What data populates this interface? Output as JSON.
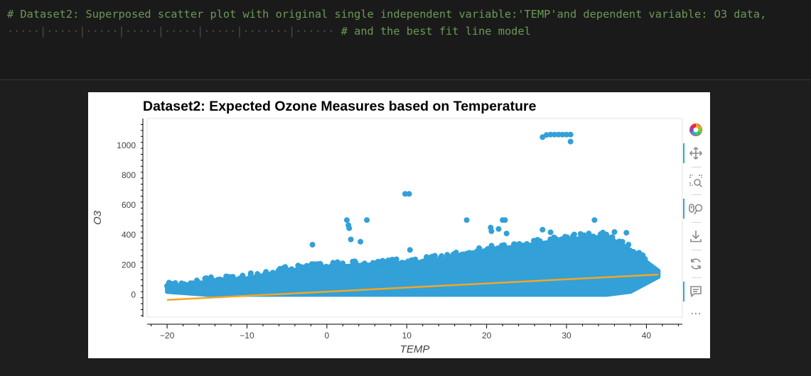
{
  "code_cell": {
    "line1": "# Dataset2: Superposed scatter plot with original single independent variable:'TEMP'and dependent variable: O3 data,",
    "line2": "# and the best fit line model"
  },
  "toolbar": {
    "items": [
      "bokeh-logo",
      "pan",
      "box-zoom",
      "wheel-zoom",
      "save",
      "reset",
      "hover",
      "more"
    ],
    "more_label": "⋯"
  },
  "colors": {
    "scatter": "#33a0d8",
    "fit_line": "#f5a623",
    "code_comment": "#6a9955"
  },
  "chart_data": {
    "type": "scatter",
    "title": "Dataset2: Expected Ozone Measures based on Temperature",
    "xlabel": "TEMP",
    "ylabel": "O3",
    "xlim": [
      -22.5,
      44.5
    ],
    "ylim": [
      -150,
      1180
    ],
    "x_ticks": [
      -20,
      -10,
      0,
      10,
      20,
      30,
      40
    ],
    "y_ticks": [
      0,
      200,
      400,
      600,
      800,
      1000
    ],
    "x_tick_labels": [
      "−20",
      "−10",
      "0",
      "10",
      "20",
      "30",
      "40"
    ],
    "y_tick_labels": [
      "0",
      "200",
      "400",
      "600",
      "800",
      "1000"
    ],
    "grid": false,
    "legend": "none",
    "series": [
      {
        "type": "scatter",
        "outliers": [
          [
            27.0,
            1055
          ],
          [
            27.5,
            1070
          ],
          [
            28.0,
            1072
          ],
          [
            28.5,
            1072
          ],
          [
            29.0,
            1072
          ],
          [
            29.5,
            1072
          ],
          [
            30.0,
            1072
          ],
          [
            30.5,
            1072
          ],
          [
            30.5,
            1025
          ],
          [
            9.8,
            675
          ],
          [
            10.3,
            675
          ],
          [
            2.5,
            500
          ],
          [
            5.0,
            500
          ],
          [
            17.5,
            500
          ],
          [
            22.0,
            500
          ],
          [
            22.3,
            500
          ],
          [
            33.5,
            500
          ],
          [
            2.7,
            465
          ],
          [
            2.8,
            445
          ],
          [
            20.5,
            450
          ],
          [
            20.6,
            425
          ],
          [
            22.5,
            410
          ],
          [
            27.0,
            435
          ],
          [
            28.0,
            418
          ],
          [
            3.0,
            370
          ],
          [
            4.2,
            355
          ],
          [
            -1.8,
            335
          ],
          [
            10.4,
            300
          ],
          [
            21.5,
            440
          ],
          [
            36.0,
            420
          ],
          [
            37.5,
            415
          ]
        ],
        "band": [
          {
            "x": -20.0,
            "min": 20,
            "max": 50
          },
          {
            "x": -15.0,
            "min": 0,
            "max": 85
          },
          {
            "x": -10.0,
            "min": 0,
            "max": 110
          },
          {
            "x": -5.0,
            "min": 0,
            "max": 160
          },
          {
            "x": 0.0,
            "min": 0,
            "max": 185
          },
          {
            "x": 5.0,
            "min": 0,
            "max": 200
          },
          {
            "x": 10.0,
            "min": 0,
            "max": 210
          },
          {
            "x": 15.0,
            "min": 0,
            "max": 240
          },
          {
            "x": 20.0,
            "min": 0,
            "max": 300
          },
          {
            "x": 25.0,
            "min": 0,
            "max": 330
          },
          {
            "x": 30.0,
            "min": 0,
            "max": 370
          },
          {
            "x": 35.0,
            "min": 0,
            "max": 390
          },
          {
            "x": 38.0,
            "min": 20,
            "max": 300
          },
          {
            "x": 41.5,
            "min": 120,
            "max": 160
          }
        ]
      },
      {
        "type": "line",
        "x": [
          -20,
          41.5
        ],
        "y": [
          -35,
          135
        ]
      }
    ]
  }
}
